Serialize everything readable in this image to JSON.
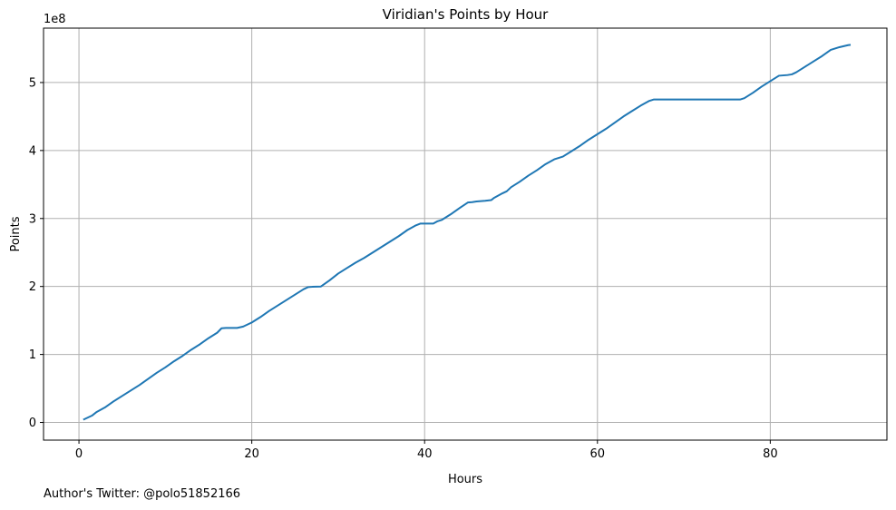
{
  "chart_data": {
    "type": "line",
    "title": "Viridian's Points by Hour",
    "xlabel": "Hours",
    "ylabel": "Points",
    "y_offset_label": "1e8",
    "xlim": [
      -4.1,
      93.5
    ],
    "ylim": [
      -0.26,
      5.8
    ],
    "y_scale_note": "y values shown in units of 1e8",
    "x_ticks": [
      0,
      20,
      40,
      60,
      80
    ],
    "x_tick_labels": [
      "0",
      "20",
      "40",
      "60",
      "80"
    ],
    "y_ticks": [
      0,
      1,
      2,
      3,
      4,
      5
    ],
    "y_tick_labels": [
      "0",
      "1",
      "2",
      "3",
      "4",
      "5"
    ],
    "grid": true,
    "line_color": "#1f77b4",
    "grid_color": "#b0b0b0",
    "series": [
      {
        "x": [
          0.5,
          1.5,
          2,
          3,
          4,
          5,
          6,
          7,
          8,
          9,
          10,
          11,
          12,
          13,
          14,
          15,
          16,
          16.5,
          17,
          18,
          18.3,
          19,
          20,
          21,
          22,
          23,
          24,
          25,
          26,
          26.5,
          27,
          28,
          29,
          30,
          31,
          32,
          33,
          34,
          35,
          36,
          37,
          38,
          39,
          39.5,
          40,
          41,
          41.5,
          42,
          43,
          44,
          45,
          45.5,
          46,
          47,
          47.7,
          48,
          49,
          49.5,
          50,
          51,
          52,
          53,
          54,
          55,
          56,
          57,
          58,
          59,
          60,
          61,
          62,
          63,
          64,
          65,
          66,
          66.5,
          70,
          76.5,
          77,
          78,
          79,
          80,
          81,
          82,
          82.5,
          83,
          84,
          85,
          86,
          87,
          88,
          89,
          89.3
        ],
        "y": [
          0.04,
          0.1,
          0.15,
          0.22,
          0.31,
          0.39,
          0.47,
          0.55,
          0.64,
          0.73,
          0.81,
          0.9,
          0.98,
          1.07,
          1.15,
          1.24,
          1.32,
          1.385,
          1.39,
          1.39,
          1.39,
          1.41,
          1.47,
          1.55,
          1.64,
          1.72,
          1.8,
          1.88,
          1.96,
          1.99,
          1.995,
          2.0,
          2.09,
          2.19,
          2.27,
          2.35,
          2.42,
          2.5,
          2.58,
          2.66,
          2.74,
          2.83,
          2.9,
          2.925,
          2.925,
          2.925,
          2.96,
          2.98,
          3.06,
          3.15,
          3.235,
          3.24,
          3.25,
          3.26,
          3.27,
          3.3,
          3.37,
          3.4,
          3.46,
          3.54,
          3.63,
          3.71,
          3.8,
          3.87,
          3.91,
          3.99,
          4.07,
          4.16,
          4.24,
          4.32,
          4.41,
          4.5,
          4.58,
          4.66,
          4.73,
          4.75,
          4.75,
          4.75,
          4.77,
          4.85,
          4.94,
          5.02,
          5.1,
          5.11,
          5.12,
          5.15,
          5.23,
          5.31,
          5.39,
          5.48,
          5.52,
          5.55,
          5.555
        ]
      }
    ]
  },
  "footnote": "Author's Twitter: @polo51852166"
}
